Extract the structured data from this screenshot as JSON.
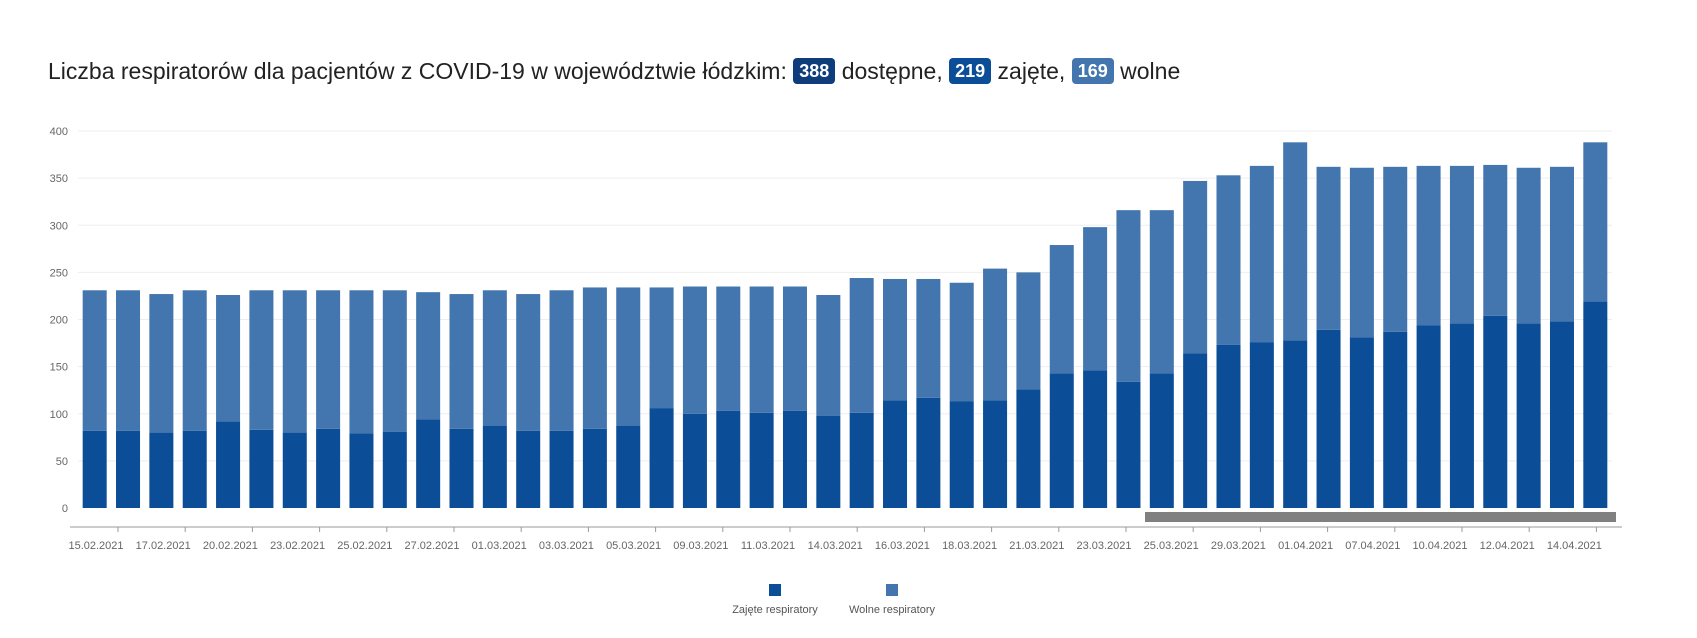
{
  "header": {
    "text_prefix": "Liczba respiratorów dla pacjentów z COVID-19 w województwie łódzkim:",
    "available_value": "388",
    "available_label": "dostępne,",
    "occupied_value": "219",
    "occupied_label": "zajęte,",
    "free_value": "169",
    "free_label": "wolne"
  },
  "colors": {
    "occupied": "#0b4d96",
    "free": "#4375ae",
    "scrollbar": "#808080",
    "axis": "#999999",
    "grid": "#eeeeee"
  },
  "chart_data": {
    "type": "bar",
    "stacked": true,
    "title": "",
    "xlabel": "",
    "ylabel": "",
    "ylim": [
      0,
      400
    ],
    "yticks": [
      0,
      50,
      100,
      150,
      200,
      250,
      300,
      350,
      400
    ],
    "grid": true,
    "legend_position": "bottom-center",
    "x_tick_labels": [
      "15.02.2021",
      "17.02.2021",
      "20.02.2021",
      "23.02.2021",
      "25.02.2021",
      "27.02.2021",
      "01.03.2021",
      "03.03.2021",
      "05.03.2021",
      "09.03.2021",
      "11.03.2021",
      "14.03.2021",
      "16.03.2021",
      "18.03.2021",
      "21.03.2021",
      "23.03.2021",
      "25.03.2021",
      "29.03.2021",
      "01.04.2021",
      "07.04.2021",
      "10.04.2021",
      "12.04.2021",
      "14.04.2021"
    ],
    "series": [
      {
        "name": "Zajęte respiratory",
        "color": "#0b4d96",
        "values": [
          82,
          82,
          80,
          82,
          92,
          83,
          80,
          84,
          79,
          81,
          94,
          84,
          87,
          82,
          82,
          84,
          87,
          106,
          100,
          103,
          101,
          103,
          98,
          101,
          114,
          117,
          113,
          114,
          126,
          143,
          146,
          134,
          143,
          164,
          173,
          176,
          178,
          189,
          181,
          187,
          194,
          196,
          204,
          196,
          198,
          219
        ]
      },
      {
        "name": "Wolne respiratory",
        "color": "#4375ae",
        "values": [
          149,
          149,
          147,
          149,
          134,
          148,
          151,
          147,
          152,
          150,
          135,
          143,
          144,
          145,
          149,
          150,
          147,
          128,
          135,
          132,
          134,
          132,
          128,
          143,
          129,
          126,
          126,
          140,
          124,
          136,
          152,
          182,
          173,
          183,
          180,
          187,
          210,
          173,
          180,
          175,
          169,
          167,
          160,
          165,
          164,
          169
        ]
      }
    ]
  }
}
